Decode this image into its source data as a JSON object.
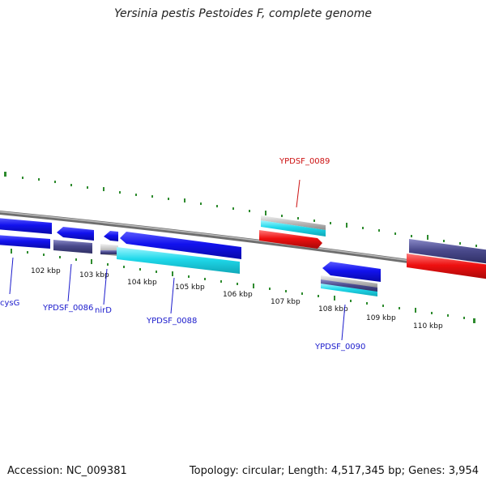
{
  "header": {
    "title": "Yersinia pestis Pestoides F, complete genome"
  },
  "footer": {
    "accession": "Accession: NC_009381",
    "summary": "Topology: circular; Length: 4,517,345 bp; Genes: 3,954"
  },
  "scale": {
    "ticks": [
      "102 kbp",
      "103 kbp",
      "104 kbp",
      "105 kbp",
      "106 kbp",
      "107 kbp",
      "108 kbp",
      "109 kbp",
      "110 kbp"
    ]
  },
  "genes": {
    "cysG": "cysG",
    "YPDSF_0086": "YPDSF_0086",
    "nirD": "nirD",
    "YPDSF_0088": "YPDSF_0088",
    "YPDSF_0089": "YPDSF_0089",
    "YPDSF_0090": "YPDSF_0090"
  },
  "colors": {
    "backbone": "#8c8c8c",
    "tick": "#2e8b2e",
    "cds": "#1414e6",
    "gene": "#4a4a8c",
    "rrna": "#22d8e8",
    "trna": "#ee1111",
    "label_blue": "#1a1acc",
    "label_red": "#cc1111"
  }
}
